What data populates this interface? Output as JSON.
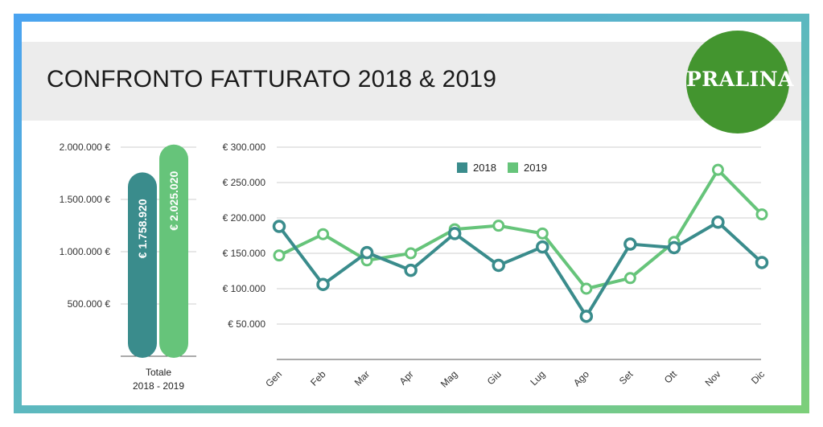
{
  "header": {
    "title": "CONFRONTO FATTURATO 2018 & 2019",
    "logo_text": "PRALINA"
  },
  "colors": {
    "series_2018": "#3a8c8c",
    "series_2019": "#66c47a",
    "logo_green": "#43952f",
    "header_band": "#ececec"
  },
  "chart_data": [
    {
      "type": "bar",
      "categories": [
        "Totale 2018 - 2019"
      ],
      "category_label_lines": [
        "Totale",
        "2018 - 2019"
      ],
      "series": [
        {
          "name": "2018",
          "values": [
            1758920
          ],
          "label": "€ 1.758.920"
        },
        {
          "name": "2019",
          "values": [
            2025020
          ],
          "label": "€ 2.025.020"
        }
      ],
      "y_ticks": [
        500000,
        1000000,
        1500000,
        2000000
      ],
      "y_tick_labels": [
        "500.000 €",
        "1.000.000 €",
        "1.500.000 €",
        "2.000.000 €"
      ],
      "ylim": [
        0,
        2000000
      ],
      "grid": true
    },
    {
      "type": "line",
      "categories": [
        "Gen",
        "Feb",
        "Mar",
        "Apr",
        "Mag",
        "Giu",
        "Lug",
        "Ago",
        "Set",
        "Ott",
        "Nov",
        "Dic"
      ],
      "series": [
        {
          "name": "2018",
          "values": [
            188000,
            106000,
            151000,
            126000,
            178000,
            133000,
            159000,
            61000,
            163000,
            158000,
            194000,
            137000
          ]
        },
        {
          "name": "2019",
          "values": [
            147000,
            177000,
            140000,
            150000,
            184000,
            189000,
            178000,
            100000,
            115000,
            166000,
            268000,
            205000
          ]
        }
      ],
      "y_ticks": [
        50000,
        100000,
        150000,
        200000,
        250000,
        300000
      ],
      "y_tick_labels": [
        "€ 50.000",
        "€ 100.000",
        "€ 150.000",
        "€ 200.000",
        "€ 250.000",
        "€ 300.000"
      ],
      "ylim": [
        0,
        300000
      ],
      "legend": "top-center",
      "grid": true
    }
  ]
}
